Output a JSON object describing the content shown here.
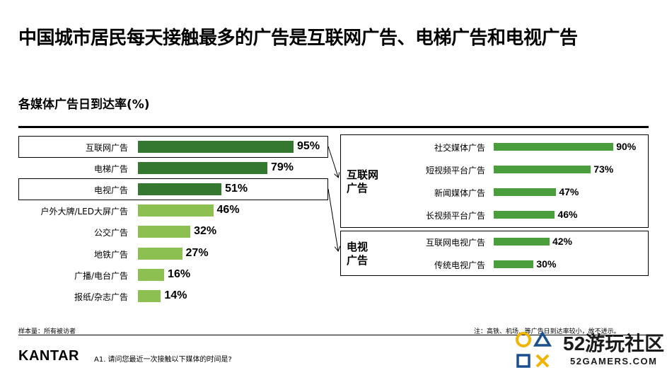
{
  "title": "中国城市居民每天接触最多的广告是互联网广告、电梯广告和电视广告",
  "colors": {
    "dark_green": "#33782e",
    "light_green": "#8cc152",
    "mid_green": "#4a9e3c"
  },
  "chart_data": [
    {
      "type": "bar",
      "orientation": "horizontal",
      "title": "各媒体广告日到达率(%)",
      "unit": "%",
      "xlim": [
        0,
        100
      ],
      "categories": [
        "互联网广告",
        "电梯广告",
        "电视广告",
        "户外大牌/LED大屏广告",
        "公交广告",
        "地铁广告",
        "广播/电台广告",
        "报纸/杂志广告"
      ],
      "values": [
        95,
        79,
        51,
        46,
        32,
        27,
        16,
        14
      ],
      "value_labels": [
        "95%",
        "79%",
        "51%",
        "46%",
        "32%",
        "27%",
        "16%",
        "14%"
      ],
      "highlighted": [
        "互联网广告",
        "电视广告"
      ],
      "colors": [
        "#33782e",
        "#33782e",
        "#33782e",
        "#8cc152",
        "#8cc152",
        "#8cc152",
        "#8cc152",
        "#8cc152"
      ]
    },
    {
      "type": "bar",
      "orientation": "horizontal",
      "group": "互联网\n广告",
      "xlim": [
        0,
        100
      ],
      "categories": [
        "社交媒体广告",
        "短视频平台广告",
        "新闻媒体广告",
        "长视频平台广告"
      ],
      "values": [
        90,
        73,
        47,
        46
      ],
      "value_labels": [
        "90%",
        "73%",
        "47%",
        "46%"
      ]
    },
    {
      "type": "bar",
      "orientation": "horizontal",
      "group": "电视\n广告",
      "xlim": [
        0,
        100
      ],
      "categories": [
        "互联网电视广告",
        "传统电视广告"
      ],
      "values": [
        42,
        30
      ],
      "value_labels": [
        "42%",
        "30%"
      ]
    }
  ],
  "footer": {
    "sample": "样本量：所有被访者",
    "note": "注：高铁、机场...等广告日到达率较小，故不进示。",
    "question": "A1. 请问您最近一次接触以下媒体的时间是?",
    "logo": "KANTAR"
  },
  "watermark": {
    "text_main": "52游玩社区",
    "text_url": "52GAMERS.COM"
  }
}
